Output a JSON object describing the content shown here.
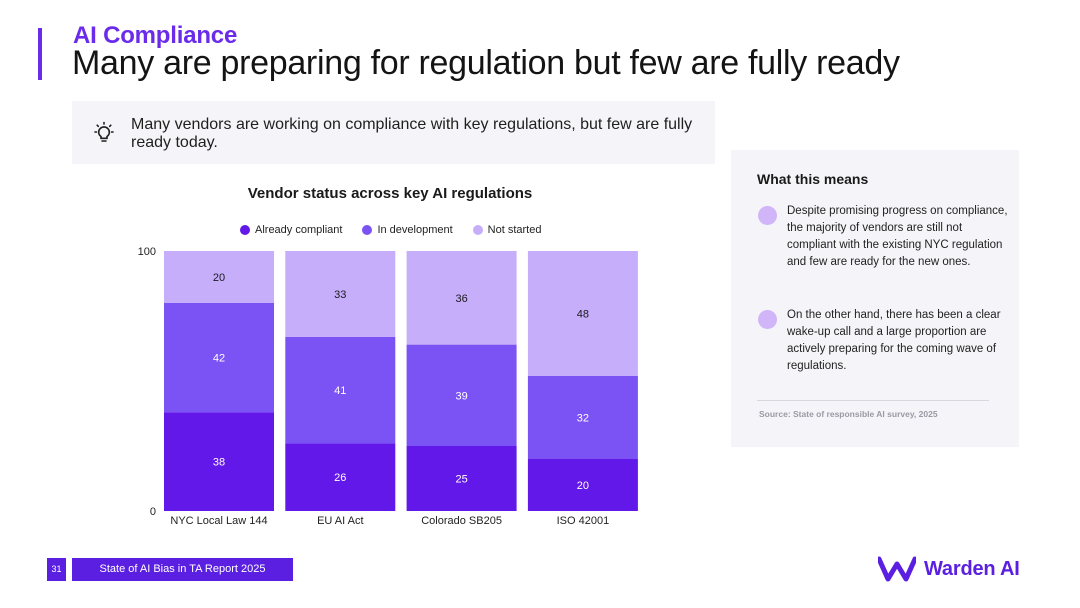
{
  "header": {
    "kicker": "AI Compliance",
    "title": "Many are preparing for regulation but few are fully ready"
  },
  "insight": {
    "text": "Many vendors are working on compliance with key regulations, but few are fully ready today."
  },
  "colors": {
    "brand": "#5a1fe0",
    "already_compliant": "#6218e8",
    "in_development": "#7b52f4",
    "not_started": "#c6aefb"
  },
  "chart_data": {
    "type": "bar",
    "stacked": true,
    "title": "Vendor status across key AI regulations",
    "categories": [
      "NYC Local Law 144",
      "EU AI Act",
      "Colorado SB205",
      "ISO 42001"
    ],
    "series": [
      {
        "name": "Already compliant",
        "values": [
          38,
          26,
          25,
          20
        ]
      },
      {
        "name": "In development",
        "values": [
          42,
          41,
          39,
          32
        ]
      },
      {
        "name": "Not started",
        "values": [
          20,
          33,
          36,
          48
        ]
      }
    ],
    "ylim": [
      0,
      100
    ],
    "y_tick_labels": [
      "0",
      "100"
    ],
    "xlabel": "",
    "ylabel": "",
    "legend_position": "top"
  },
  "side_panel": {
    "heading": "What this means",
    "points": [
      "Despite promising progress on compliance, the majority of vendors are still not compliant with the existing NYC regulation and few are ready for the new ones.",
      "On the other hand, there has been a clear wake-up call and a large proportion are actively preparing for the coming wave of regulations."
    ],
    "source": "Source: State of responsible AI survey, 2025"
  },
  "footer": {
    "page_number": "31",
    "report_title": "State of AI Bias in TA Report 2025"
  },
  "brand": {
    "name": "Warden AI",
    "logo_icon": "warden-w-logo"
  }
}
